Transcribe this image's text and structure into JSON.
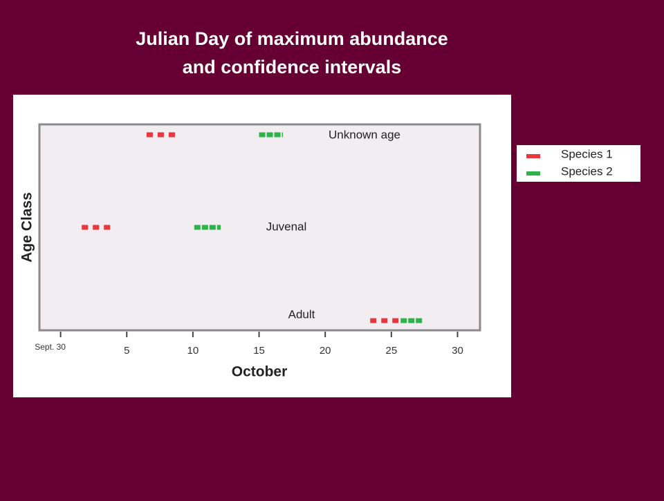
{
  "chart_data": {
    "type": "interval",
    "title": "Julian Day of maximum abundance",
    "subtitle": "and confidence intervals",
    "x_label": "October",
    "y_label": "Age Class",
    "categories": [
      "Adult",
      "Juvenal",
      "Unknown age"
    ],
    "series": [
      {
        "name": "Species 1",
        "color": "#e8383d",
        "low": [
          23.4,
          1.6,
          6.5
        ],
        "high": [
          25.9,
          3.8,
          8.8
        ]
      },
      {
        "name": "Species 2",
        "color": "#2db34a",
        "low": [
          25.7,
          10.1,
          15.0
        ],
        "high": [
          27.4,
          12.1,
          16.8
        ]
      }
    ],
    "xlim": [
      -1.6,
      31.7
    ],
    "xticks": [
      {
        "value": 0,
        "label": "Sept. 30"
      },
      5,
      10,
      15,
      20,
      25,
      30
    ],
    "legend": "right"
  }
}
